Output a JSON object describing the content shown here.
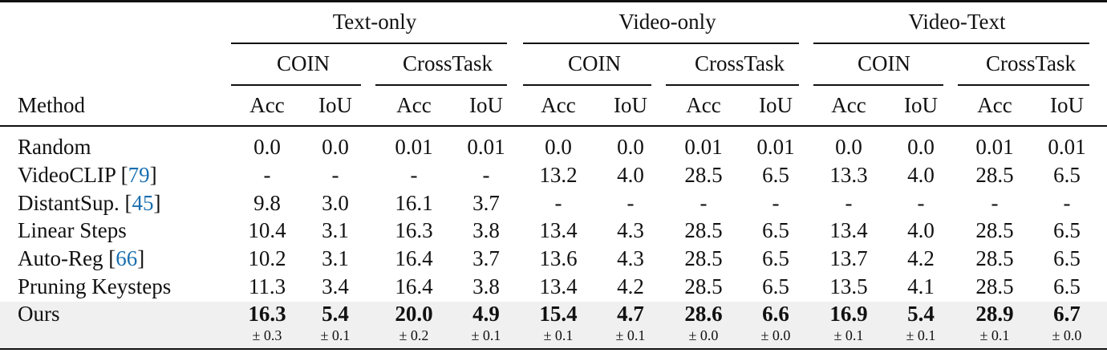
{
  "table": {
    "modalities": [
      "Text-only",
      "Video-only",
      "Video-Text"
    ],
    "datasets": [
      "COIN",
      "CrossTask",
      "COIN",
      "CrossTask",
      "COIN",
      "CrossTask"
    ],
    "metrics": [
      "Acc",
      "IoU",
      "Acc",
      "IoU",
      "Acc",
      "IoU",
      "Acc",
      "IoU",
      "Acc",
      "IoU",
      "Acc",
      "IoU"
    ],
    "method_header": "Method",
    "rows": [
      {
        "method": "Random",
        "cite": "",
        "values": [
          "0.0",
          "0.0",
          "0.01",
          "0.01",
          "0.0",
          "0.0",
          "0.01",
          "0.01",
          "0.0",
          "0.0",
          "0.01",
          "0.01"
        ]
      },
      {
        "method": "VideoCLIP",
        "cite": "79",
        "values": [
          "-",
          "-",
          "-",
          "-",
          "13.2",
          "4.0",
          "28.5",
          "6.5",
          "13.3",
          "4.0",
          "28.5",
          "6.5"
        ]
      },
      {
        "method": "DistantSup.",
        "cite": "45",
        "values": [
          "9.8",
          "3.0",
          "16.1",
          "3.7",
          "-",
          "-",
          "-",
          "-",
          "-",
          "-",
          "-",
          "-"
        ]
      },
      {
        "method": "Linear Steps",
        "cite": "",
        "values": [
          "10.4",
          "3.1",
          "16.3",
          "3.8",
          "13.4",
          "4.3",
          "28.5",
          "6.5",
          "13.4",
          "4.0",
          "28.5",
          "6.5"
        ]
      },
      {
        "method": "Auto-Reg",
        "cite": "66",
        "values": [
          "10.2",
          "3.1",
          "16.4",
          "3.7",
          "13.6",
          "4.3",
          "28.5",
          "6.5",
          "13.7",
          "4.2",
          "28.5",
          "6.5"
        ]
      },
      {
        "method": "Pruning Keysteps",
        "cite": "",
        "values": [
          "11.3",
          "3.4",
          "16.4",
          "3.8",
          "13.4",
          "4.2",
          "28.5",
          "6.5",
          "13.5",
          "4.1",
          "28.5",
          "6.5"
        ]
      }
    ],
    "ours": {
      "method": "Ours",
      "values": [
        "16.3",
        "5.4",
        "20.0",
        "4.9",
        "15.4",
        "4.7",
        "28.6",
        "6.6",
        "16.9",
        "5.4",
        "28.9",
        "6.7"
      ],
      "std": [
        "± 0.3",
        "± 0.1",
        "± 0.2",
        "± 0.1",
        "± 0.1",
        "± 0.1",
        "± 0.0",
        "± 0.0",
        "± 0.1",
        "± 0.1",
        "± 0.1",
        "± 0.0"
      ]
    },
    "colors": {
      "cite": "#1a6fb0",
      "highlight_row": "#f0f0f0"
    }
  }
}
